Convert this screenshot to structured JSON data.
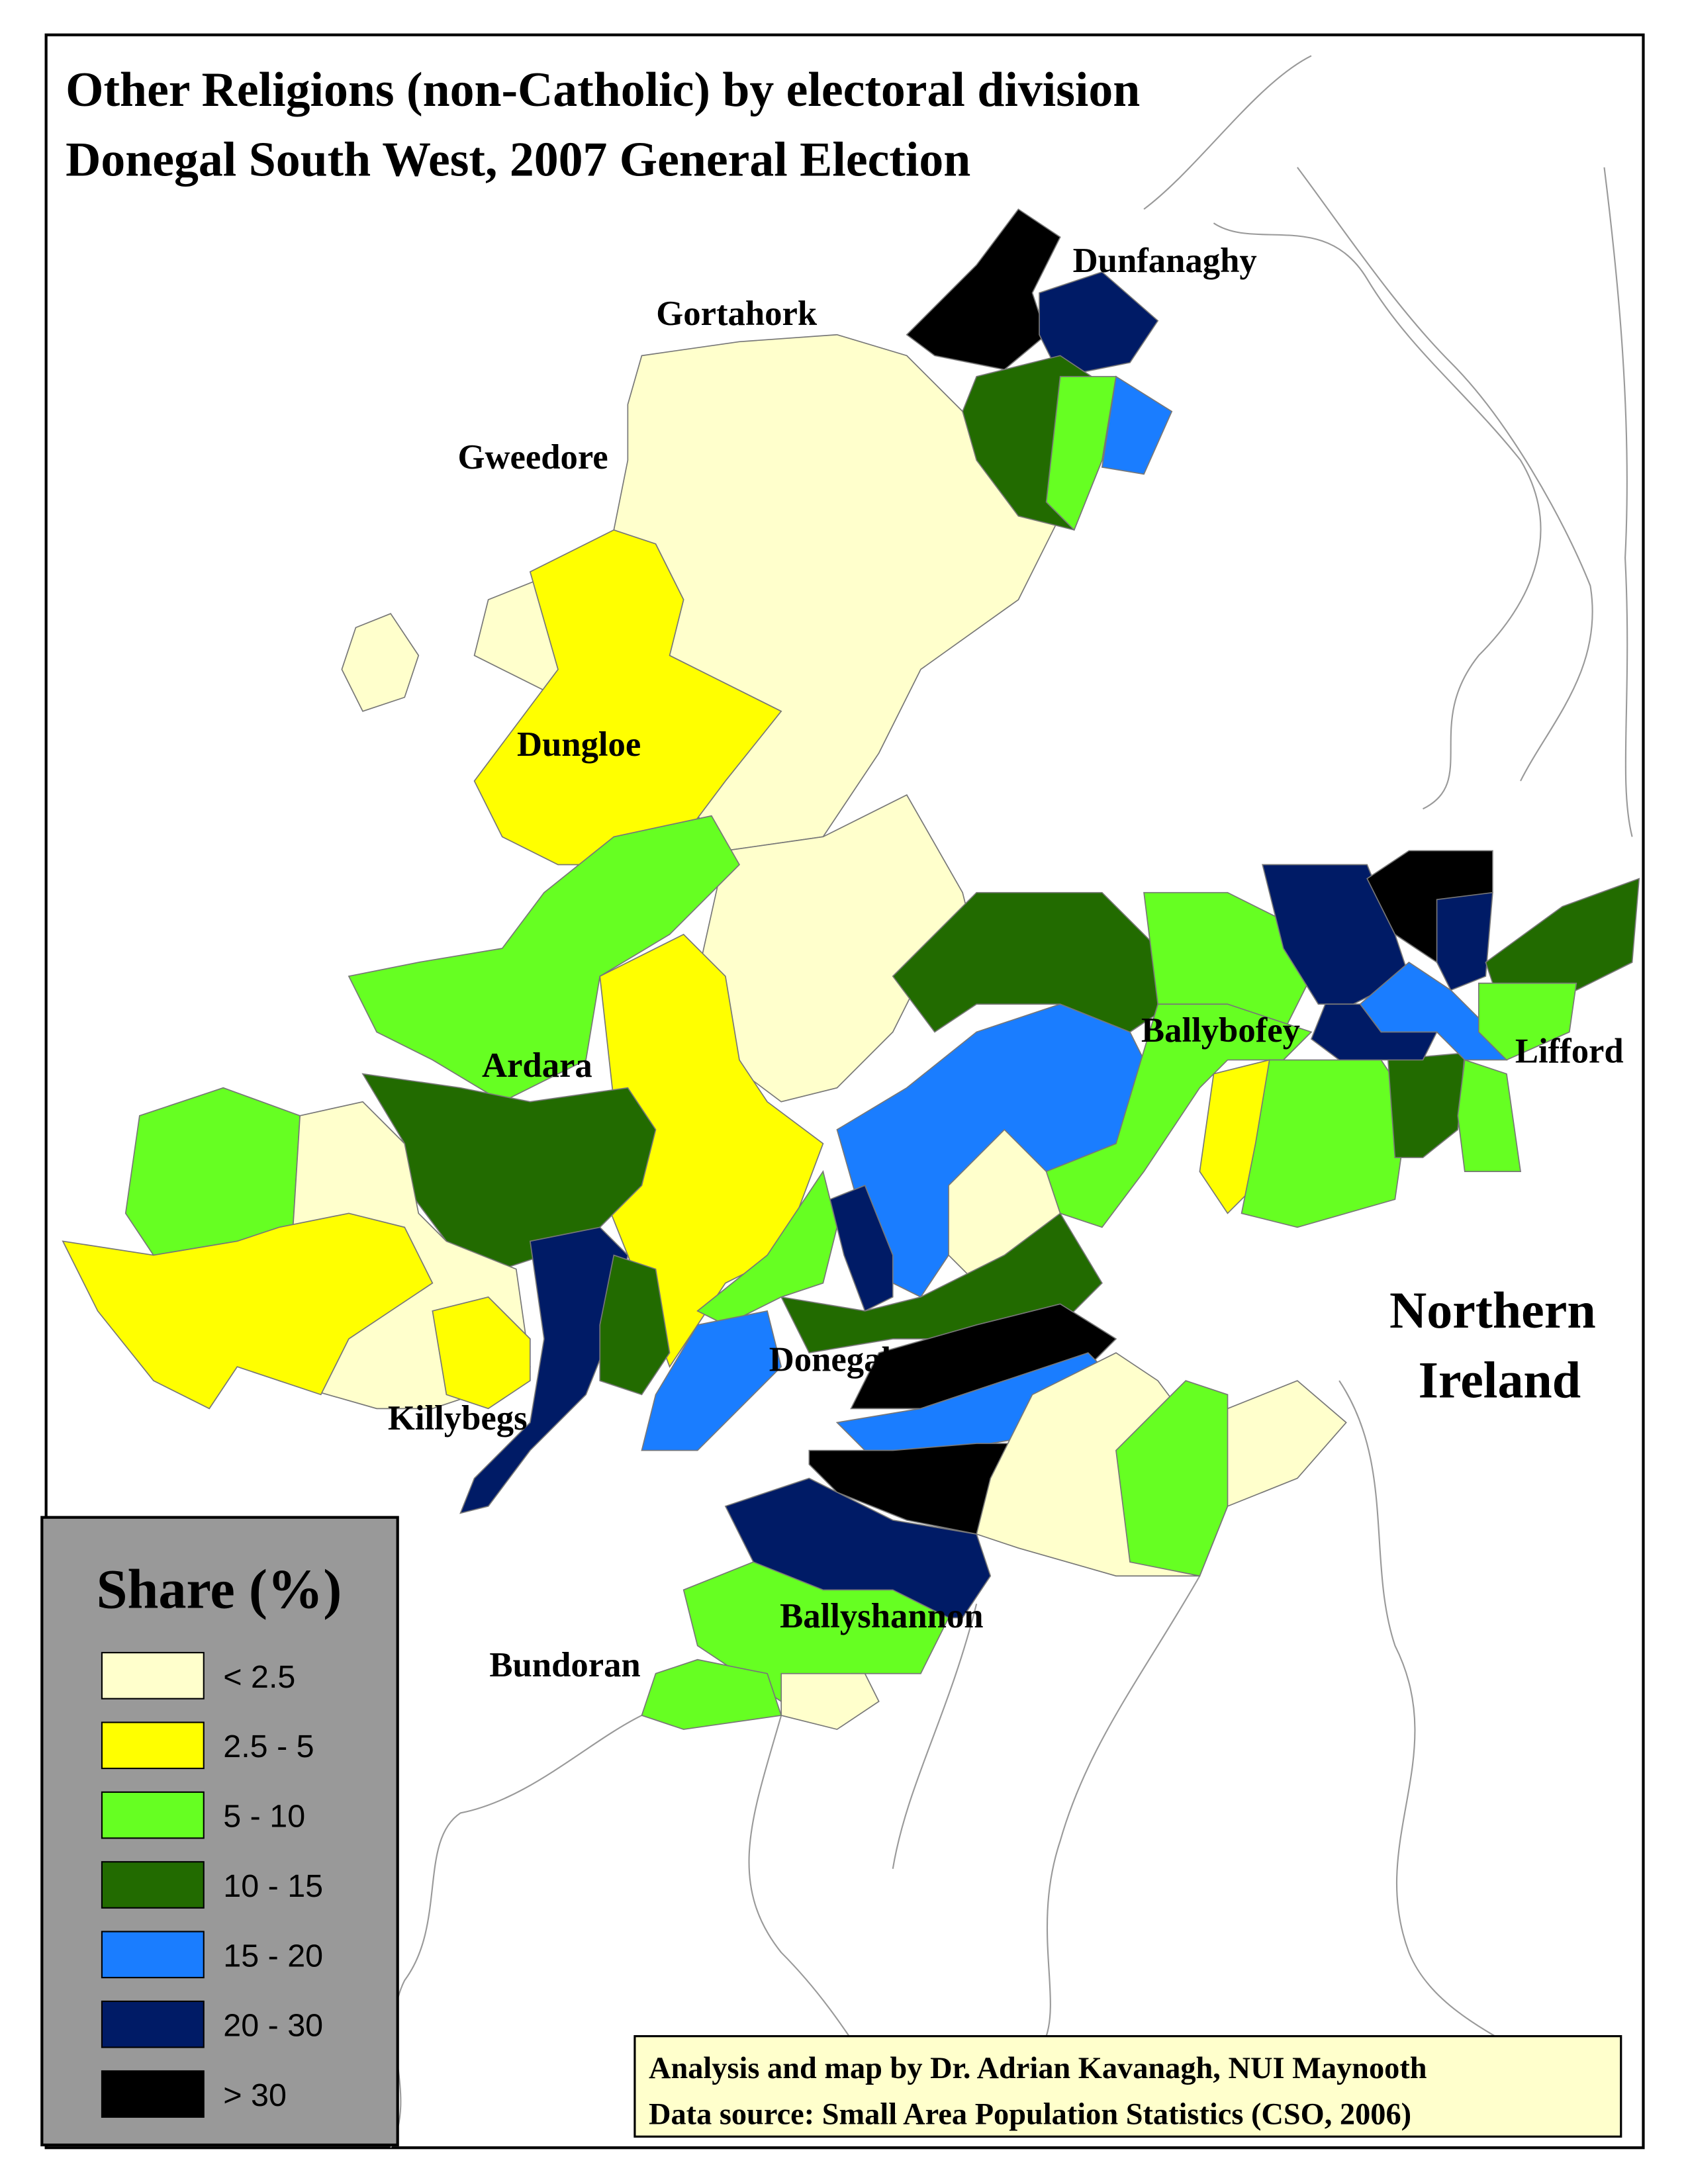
{
  "title": [
    "Other Religions (non-Catholic) by electoral division",
    "Donegal South West, 2007 General Election"
  ],
  "places": [
    "Dunfanaghy",
    "Gortahork",
    "Gweedore",
    "Dungloe",
    "Ardara",
    "Ballybofey",
    "Lifford",
    "Killybegs",
    "Donegal",
    "Ballyshannon",
    "Bundoran"
  ],
  "region_label": [
    "Northern",
    "Ireland"
  ],
  "legend": {
    "title": "Share (%)",
    "items": [
      {
        "label": "< 2.5",
        "color": "#ffffcc"
      },
      {
        "label": "2.5 - 5",
        "color": "#ffff00"
      },
      {
        "label": "5 - 10",
        "color": "#66ff22"
      },
      {
        "label": "10 - 15",
        "color": "#226b00"
      },
      {
        "label": "15 - 20",
        "color": "#1a7dff"
      },
      {
        "label": "20 - 30",
        "color": "#001b66"
      },
      {
        "label": "> 30",
        "color": "#000000"
      }
    ]
  },
  "credits": [
    "Analysis and map by Dr. Adrian Kavanagh, NUI Maynooth",
    "Data source: Small Area Population Statistics (CSO, 2006)"
  ]
}
